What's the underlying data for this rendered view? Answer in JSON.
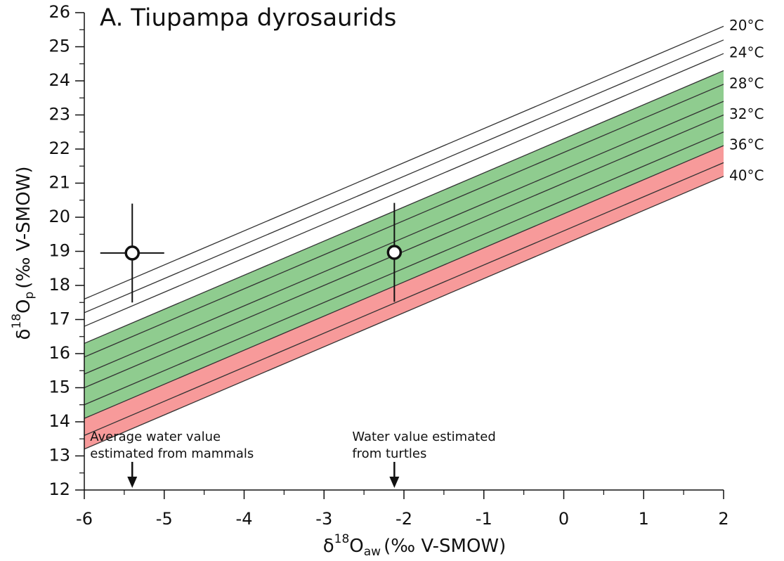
{
  "chart_data": {
    "type": "line",
    "title": "A. Tiupampa dyrosaurids",
    "x_label": {
      "prefix": "δ",
      "sup": "18",
      "main": "O",
      "sub": "aw",
      "suffix": "(‰ V-SMOW)"
    },
    "y_label": {
      "prefix": "δ",
      "sup": "18",
      "main": "O",
      "sub": "p",
      "suffix": "(‰ V-SMOW)"
    },
    "x": [
      -6,
      2
    ],
    "series": [
      {
        "name": "20°C",
        "color": "#333333",
        "values": [
          17.6,
          25.6
        ]
      },
      {
        "color": "#333333",
        "values": [
          17.2,
          25.2
        ]
      },
      {
        "name": "24°C",
        "color": "#333333",
        "values": [
          16.8,
          24.8
        ]
      },
      {
        "color": "#333333",
        "fill": "#8fcc8f",
        "values": [
          16.3,
          24.3
        ]
      },
      {
        "name": "28°C",
        "color": "#333333",
        "fill": "#8fcc8f",
        "values": [
          15.9,
          23.9
        ]
      },
      {
        "color": "#333333",
        "fill": "#8fcc8f",
        "values": [
          15.4,
          23.4
        ]
      },
      {
        "name": "32°C",
        "color": "#333333",
        "fill": "#8fcc8f",
        "values": [
          15.0,
          23.0
        ]
      },
      {
        "color": "#333333",
        "fill": "#8fcc8f",
        "values": [
          14.5,
          22.5
        ]
      },
      {
        "name": "36°C",
        "color": "#333333",
        "fill": "#f79a9a",
        "values": [
          14.1,
          22.1
        ]
      },
      {
        "color": "#333333",
        "fill": "#f79a9a",
        "values": [
          13.6,
          21.6
        ]
      },
      {
        "name": "40°C",
        "color": "#333333",
        "values": [
          13.2,
          21.2
        ]
      }
    ],
    "points": {
      "x": [
        -5.4,
        -2.12
      ],
      "y": [
        18.95,
        18.97
      ],
      "xerr": [
        0.4,
        null
      ],
      "yerr": [
        1.45,
        1.45
      ]
    },
    "annotations": [
      {
        "text": [
          "Average water value",
          "estimated from mammals"
        ],
        "x": -5.4
      },
      {
        "text": [
          "Water value estimated",
          "from turtles"
        ],
        "x": -2.12
      }
    ],
    "xlim": [
      -6,
      2
    ],
    "ylim": [
      12,
      26
    ],
    "xticks": [
      -6,
      -5,
      -4,
      -3,
      -2,
      -1,
      0,
      1,
      2
    ],
    "yticks": [
      12,
      13,
      14,
      15,
      16,
      17,
      18,
      19,
      20,
      21,
      22,
      23,
      24,
      25,
      26
    ],
    "xminorticks": [
      -5.5,
      -4.5,
      -3.5,
      -2.5,
      -1.5,
      -0.5,
      0.5,
      1.5
    ],
    "yminorticks": [
      12.5,
      13.5,
      14.5,
      15.5,
      16.5,
      17.5,
      18.5,
      19.5,
      20.5,
      21.5,
      22.5,
      23.5,
      24.5,
      25.5
    ]
  }
}
